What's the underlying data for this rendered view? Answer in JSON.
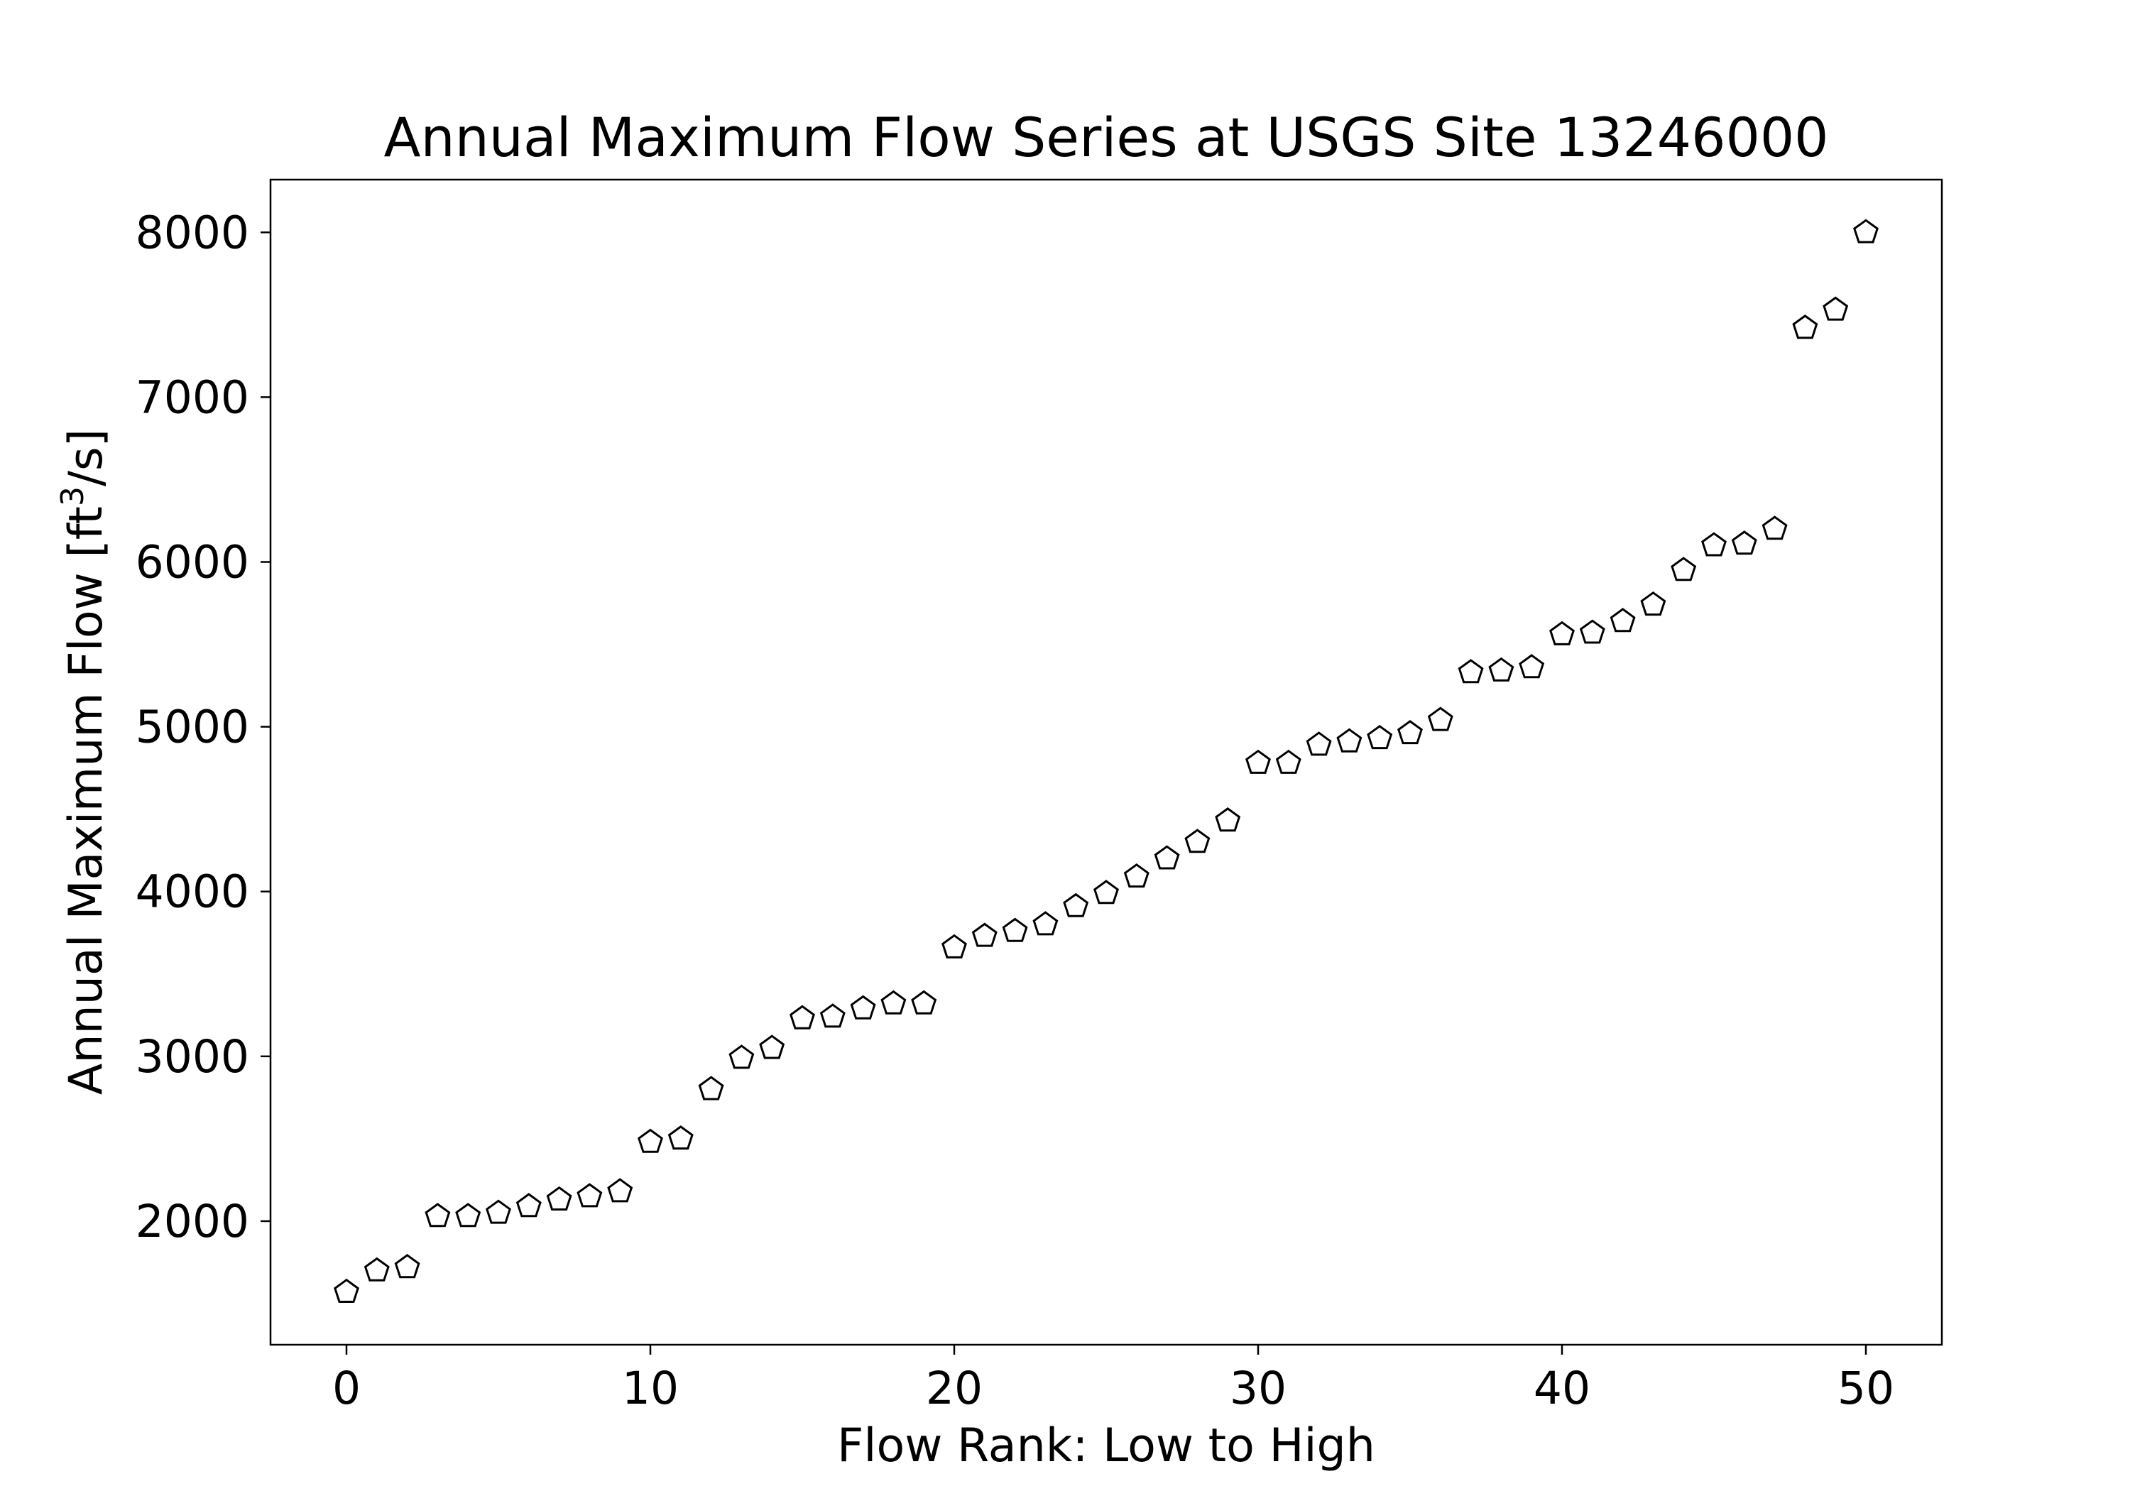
{
  "chart_data": {
    "type": "scatter",
    "title": "Annual Maximum Flow Series at USGS Site 13246000",
    "xlabel": "Flow Rank: Low to High",
    "ylabel": {
      "prefix": "Annual Maximum Flow [ft",
      "superscript": "3",
      "suffix": "/s]"
    },
    "xlim": [
      -2.5,
      52.5
    ],
    "ylim": [
      1250,
      8320
    ],
    "xticks": [
      0,
      10,
      20,
      30,
      40,
      50
    ],
    "yticks": [
      2000,
      3000,
      4000,
      5000,
      6000,
      7000,
      8000
    ],
    "grid": false,
    "marker": "pentagon",
    "marker_color": "#000000",
    "marker_fill": "#ffffff",
    "series": [
      {
        "x": [
          0,
          1,
          2,
          3,
          4,
          5,
          6,
          7,
          8,
          9,
          10,
          11,
          12,
          13,
          14,
          15,
          16,
          17,
          18,
          19,
          20,
          21,
          22,
          23,
          24,
          25,
          26,
          27,
          28,
          29,
          30,
          31,
          32,
          33,
          34,
          35,
          36,
          37,
          38,
          39,
          40,
          41,
          42,
          43,
          44,
          45,
          46,
          47,
          48,
          49,
          50
        ],
        "y": [
          1570,
          1700,
          1720,
          2030,
          2030,
          2050,
          2090,
          2130,
          2150,
          2180,
          2480,
          2500,
          2800,
          2990,
          3050,
          3230,
          3240,
          3290,
          3320,
          3320,
          3660,
          3730,
          3760,
          3800,
          3910,
          3990,
          4090,
          4200,
          4300,
          4430,
          4780,
          4780,
          4890,
          4910,
          4930,
          4960,
          5040,
          5330,
          5340,
          5360,
          5560,
          5570,
          5640,
          5740,
          5950,
          6100,
          6110,
          6200,
          7420,
          7530,
          8000
        ]
      }
    ]
  }
}
